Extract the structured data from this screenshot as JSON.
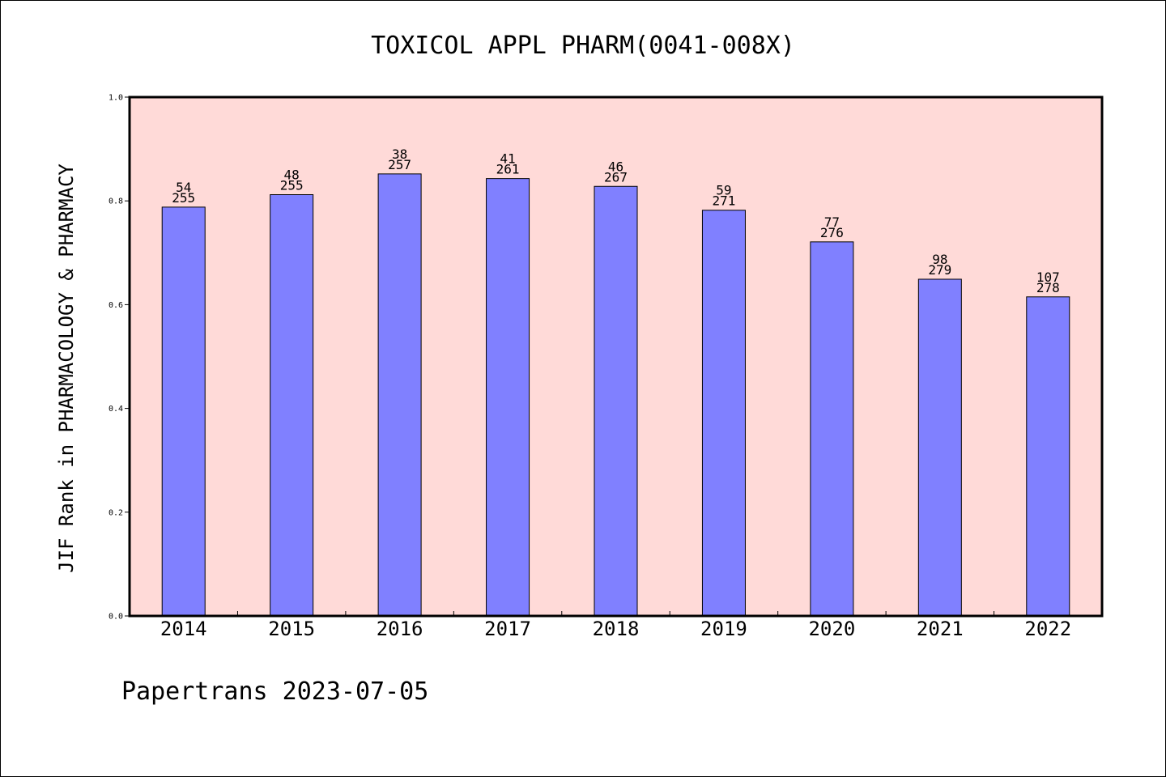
{
  "chart_data": {
    "type": "bar",
    "title": "TOXICOL APPL PHARM(0041-008X)",
    "xlabel": "",
    "ylabel": "JIF Rank in PHARMACOLOGY & PHARMACY",
    "ylim": [
      0,
      1.0
    ],
    "yticks": [
      "0.0",
      "0.2",
      "0.4",
      "0.6",
      "0.8",
      "1.0"
    ],
    "categories": [
      "2014",
      "2015",
      "2016",
      "2017",
      "2018",
      "2019",
      "2020",
      "2021",
      "2022"
    ],
    "values": [
      0.788,
      0.812,
      0.852,
      0.843,
      0.828,
      0.782,
      0.721,
      0.649,
      0.615
    ],
    "rank": [
      "54",
      "48",
      "38",
      "41",
      "46",
      "59",
      "77",
      "98",
      "107"
    ],
    "total": [
      "255",
      "255",
      "257",
      "261",
      "267",
      "271",
      "276",
      "279",
      "278"
    ],
    "grid": false,
    "colors": {
      "plot_bg": "#ffdad8",
      "bar": "#8080ff",
      "bar_stroke": "#000000"
    }
  },
  "footer": "Papertrans 2023-07-05"
}
